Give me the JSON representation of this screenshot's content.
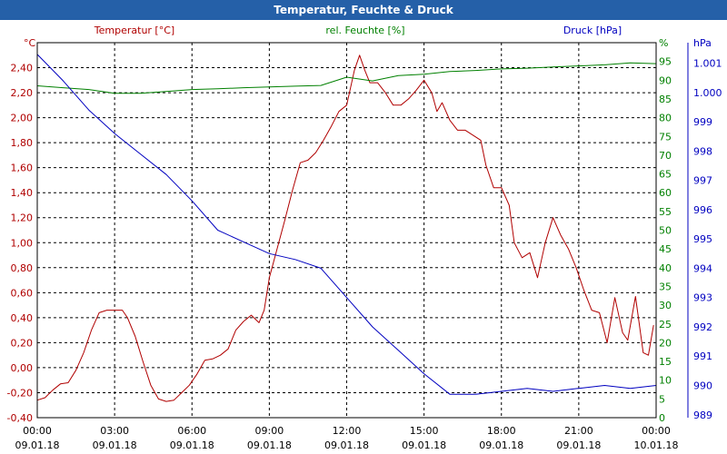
{
  "window": {
    "title": "Temperatur, Feuchte & Druck"
  },
  "colors": {
    "temperature": "#b00000",
    "humidity": "#008000",
    "pressure": "#0000c0",
    "title_bar": "#2560a8",
    "grid": "#000000"
  },
  "chart_data": {
    "type": "line",
    "title": "Temperatur, Feuchte & Druck",
    "grid": true,
    "x_ticks": [
      {
        "time": "00:00",
        "date": "09.01.18"
      },
      {
        "time": "03:00",
        "date": "09.01.18"
      },
      {
        "time": "06:00",
        "date": "09.01.18"
      },
      {
        "time": "09:00",
        "date": "09.01.18"
      },
      {
        "time": "12:00",
        "date": "09.01.18"
      },
      {
        "time": "15:00",
        "date": "09.01.18"
      },
      {
        "time": "18:00",
        "date": "09.01.18"
      },
      {
        "time": "21:00",
        "date": "09.01.18"
      },
      {
        "time": "00:00",
        "date": "10.01.18"
      }
    ],
    "x_range_hours": [
      0,
      24
    ],
    "axes": {
      "temperature": {
        "label": "Temperatur [°C]",
        "unit": "°C",
        "range": [
          -0.4,
          2.6
        ],
        "ticks": [
          "-0,40",
          "-0,20",
          "0,00",
          "0,20",
          "0,40",
          "0,60",
          "0,80",
          "1,00",
          "1,20",
          "1,40",
          "1,60",
          "1,80",
          "2,00",
          "2,20",
          "2,40"
        ]
      },
      "humidity": {
        "label": "rel. Feuchte [%]",
        "unit": "%",
        "range": [
          0,
          100
        ],
        "ticks": [
          "0",
          "5",
          "10",
          "15",
          "20",
          "25",
          "30",
          "35",
          "40",
          "45",
          "50",
          "55",
          "60",
          "65",
          "70",
          "75",
          "80",
          "85",
          "90",
          "95"
        ]
      },
      "pressure": {
        "label": "Druck [hPa]",
        "unit": "hPa",
        "range": [
          988.9,
          1001.7
        ],
        "ticks": [
          "989",
          "990",
          "991",
          "992",
          "993",
          "994",
          "995",
          "996",
          "997",
          "998",
          "999",
          "1.000",
          "1.001"
        ]
      }
    },
    "series": [
      {
        "name": "Temperatur [°C]",
        "axis": "temperature",
        "points": [
          [
            0,
            -0.26
          ],
          [
            0.3,
            -0.24
          ],
          [
            0.6,
            -0.18
          ],
          [
            0.9,
            -0.13
          ],
          [
            1.2,
            -0.12
          ],
          [
            1.5,
            -0.02
          ],
          [
            1.8,
            0.12
          ],
          [
            2.1,
            0.3
          ],
          [
            2.4,
            0.44
          ],
          [
            2.7,
            0.46
          ],
          [
            3.0,
            0.46
          ],
          [
            3.3,
            0.46
          ],
          [
            3.5,
            0.4
          ],
          [
            3.8,
            0.25
          ],
          [
            4.1,
            0.05
          ],
          [
            4.4,
            -0.14
          ],
          [
            4.7,
            -0.25
          ],
          [
            5.0,
            -0.27
          ],
          [
            5.3,
            -0.26
          ],
          [
            5.6,
            -0.2
          ],
          [
            5.9,
            -0.14
          ],
          [
            6.2,
            -0.05
          ],
          [
            6.5,
            0.06
          ],
          [
            6.8,
            0.07
          ],
          [
            7.1,
            0.1
          ],
          [
            7.4,
            0.15
          ],
          [
            7.7,
            0.3
          ],
          [
            8.0,
            0.37
          ],
          [
            8.3,
            0.42
          ],
          [
            8.6,
            0.36
          ],
          [
            8.8,
            0.46
          ],
          [
            9.0,
            0.72
          ],
          [
            9.3,
            0.95
          ],
          [
            9.6,
            1.18
          ],
          [
            9.9,
            1.42
          ],
          [
            10.2,
            1.64
          ],
          [
            10.5,
            1.66
          ],
          [
            10.8,
            1.72
          ],
          [
            11.1,
            1.82
          ],
          [
            11.4,
            1.93
          ],
          [
            11.7,
            2.05
          ],
          [
            12.0,
            2.1
          ],
          [
            12.3,
            2.38
          ],
          [
            12.5,
            2.5
          ],
          [
            12.7,
            2.38
          ],
          [
            12.9,
            2.28
          ],
          [
            13.2,
            2.28
          ],
          [
            13.5,
            2.2
          ],
          [
            13.8,
            2.1
          ],
          [
            14.1,
            2.1
          ],
          [
            14.4,
            2.15
          ],
          [
            14.7,
            2.22
          ],
          [
            15.0,
            2.3
          ],
          [
            15.3,
            2.2
          ],
          [
            15.5,
            2.05
          ],
          [
            15.7,
            2.12
          ],
          [
            16.0,
            1.98
          ],
          [
            16.3,
            1.9
          ],
          [
            16.6,
            1.9
          ],
          [
            16.9,
            1.86
          ],
          [
            17.2,
            1.82
          ],
          [
            17.4,
            1.62
          ],
          [
            17.7,
            1.44
          ],
          [
            18.0,
            1.44
          ],
          [
            18.3,
            1.3
          ],
          [
            18.5,
            1.0
          ],
          [
            18.8,
            0.88
          ],
          [
            19.1,
            0.92
          ],
          [
            19.4,
            0.72
          ],
          [
            19.7,
            1.0
          ],
          [
            20.0,
            1.2
          ],
          [
            20.3,
            1.06
          ],
          [
            20.6,
            0.95
          ],
          [
            20.9,
            0.8
          ],
          [
            21.2,
            0.62
          ],
          [
            21.5,
            0.46
          ],
          [
            21.8,
            0.44
          ],
          [
            22.1,
            0.2
          ],
          [
            22.4,
            0.56
          ],
          [
            22.7,
            0.28
          ],
          [
            22.9,
            0.22
          ],
          [
            23.2,
            0.57
          ],
          [
            23.5,
            0.12
          ],
          [
            23.7,
            0.1
          ],
          [
            23.9,
            0.34
          ]
        ]
      },
      {
        "name": "rel. Feuchte [%]",
        "axis": "humidity",
        "points": [
          [
            0,
            88.5
          ],
          [
            1,
            88
          ],
          [
            2,
            87.5
          ],
          [
            3,
            86.5
          ],
          [
            4,
            86.5
          ],
          [
            5,
            87
          ],
          [
            6,
            87.5
          ],
          [
            7,
            87.7
          ],
          [
            8,
            88
          ],
          [
            9,
            88.2
          ],
          [
            10,
            88.4
          ],
          [
            11,
            88.6
          ],
          [
            12,
            90.8
          ],
          [
            13,
            89.8
          ],
          [
            14,
            91.2
          ],
          [
            15,
            91.6
          ],
          [
            16,
            92.3
          ],
          [
            17,
            92.6
          ],
          [
            18,
            93
          ],
          [
            19,
            93.2
          ],
          [
            20,
            93.5
          ],
          [
            21,
            93.8
          ],
          [
            22,
            94.1
          ],
          [
            23,
            94.6
          ],
          [
            24,
            94.4
          ]
        ]
      },
      {
        "name": "Druck [hPa]",
        "axis": "pressure",
        "points": [
          [
            0,
            1001.3
          ],
          [
            1,
            1000.4
          ],
          [
            2,
            999.4
          ],
          [
            3,
            998.6
          ],
          [
            4,
            997.9
          ],
          [
            5,
            997.2
          ],
          [
            6,
            996.3
          ],
          [
            7,
            995.3
          ],
          [
            8,
            994.9
          ],
          [
            9,
            994.5
          ],
          [
            10,
            994.3
          ],
          [
            11,
            994.0
          ],
          [
            12,
            993.0
          ],
          [
            13,
            992.0
          ],
          [
            14,
            991.2
          ],
          [
            15,
            990.4
          ],
          [
            16,
            989.7
          ],
          [
            17,
            989.7
          ],
          [
            18,
            989.8
          ],
          [
            19,
            989.9
          ],
          [
            20,
            989.8
          ],
          [
            21,
            989.9
          ],
          [
            22,
            990.0
          ],
          [
            23,
            989.9
          ],
          [
            24,
            990.0
          ]
        ]
      }
    ]
  }
}
